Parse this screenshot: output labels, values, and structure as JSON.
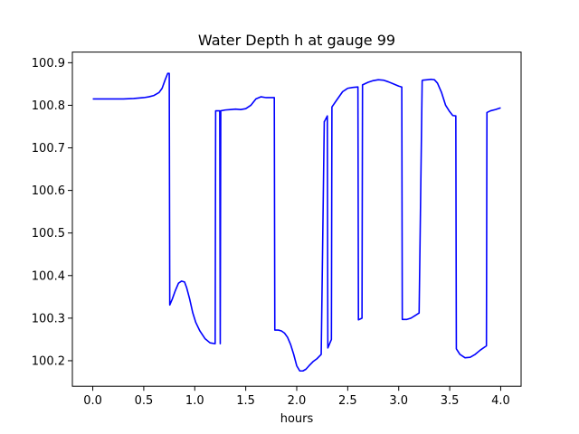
{
  "chart_data": {
    "type": "line",
    "title": "Water Depth h at gauge 99",
    "xlabel": "hours",
    "ylabel": "",
    "xlim": [
      -0.2,
      4.2
    ],
    "ylim": [
      100.14,
      100.925
    ],
    "xticks": [
      0.0,
      0.5,
      1.0,
      1.5,
      2.0,
      2.5,
      3.0,
      3.5,
      4.0
    ],
    "xtick_labels": [
      "0.0",
      "0.5",
      "1.0",
      "1.5",
      "2.0",
      "2.5",
      "3.0",
      "3.5",
      "4.0"
    ],
    "yticks": [
      100.2,
      100.3,
      100.4,
      100.5,
      100.6,
      100.7,
      100.8,
      100.9
    ],
    "ytick_labels": [
      "100.2",
      "100.3",
      "100.4",
      "100.5",
      "100.6",
      "100.7",
      "100.8",
      "100.9"
    ],
    "grid": false,
    "line_color": "#0000ff",
    "series": [
      {
        "name": "",
        "x": [
          0.0,
          0.1,
          0.2,
          0.3,
          0.4,
          0.5,
          0.55,
          0.6,
          0.65,
          0.68,
          0.71,
          0.735,
          0.75,
          0.755,
          0.78,
          0.81,
          0.84,
          0.87,
          0.9,
          0.92,
          0.95,
          0.98,
          1.01,
          1.05,
          1.1,
          1.15,
          1.2,
          1.205,
          1.245,
          1.25,
          1.255,
          1.3,
          1.35,
          1.4,
          1.45,
          1.5,
          1.55,
          1.6,
          1.65,
          1.7,
          1.75,
          1.78,
          1.785,
          1.82,
          1.85,
          1.88,
          1.91,
          1.94,
          1.97,
          2.0,
          2.03,
          2.06,
          2.09,
          2.12,
          2.16,
          2.2,
          2.24,
          2.27,
          2.272,
          2.3,
          2.305,
          2.34,
          2.345,
          2.4,
          2.45,
          2.5,
          2.55,
          2.6,
          2.605,
          2.64,
          2.645,
          2.7,
          2.75,
          2.8,
          2.85,
          2.9,
          2.95,
          3.0,
          3.03,
          3.035,
          3.08,
          3.12,
          3.16,
          3.2,
          3.23,
          3.235,
          3.28,
          3.32,
          3.35,
          3.38,
          3.42,
          3.46,
          3.5,
          3.53,
          3.56,
          3.565,
          3.6,
          3.65,
          3.7,
          3.75,
          3.8,
          3.86,
          3.865,
          3.9,
          3.95,
          4.0
        ],
        "y": [
          100.815,
          100.815,
          100.815,
          100.815,
          100.816,
          100.818,
          100.82,
          100.823,
          100.83,
          100.84,
          100.86,
          100.875,
          100.875,
          100.331,
          100.345,
          100.365,
          100.382,
          100.387,
          100.385,
          100.372,
          100.345,
          100.313,
          100.29,
          100.27,
          100.252,
          100.242,
          100.24,
          100.787,
          100.787,
          100.24,
          100.787,
          100.789,
          100.79,
          100.791,
          100.79,
          100.792,
          100.8,
          100.815,
          100.82,
          100.818,
          100.818,
          100.818,
          100.272,
          100.272,
          100.27,
          100.265,
          100.255,
          100.238,
          100.215,
          100.188,
          100.176,
          100.176,
          100.18,
          100.188,
          100.198,
          100.205,
          100.215,
          100.762,
          100.762,
          100.775,
          100.23,
          100.25,
          100.796,
          100.815,
          100.832,
          100.84,
          100.842,
          100.843,
          100.296,
          100.3,
          100.848,
          100.854,
          100.858,
          100.86,
          100.859,
          100.855,
          100.85,
          100.845,
          100.843,
          100.297,
          100.297,
          100.3,
          100.306,
          100.312,
          100.858,
          100.859,
          100.86,
          100.861,
          100.86,
          100.852,
          100.83,
          100.8,
          100.785,
          100.776,
          100.775,
          100.228,
          100.215,
          100.207,
          100.208,
          100.215,
          100.225,
          100.235,
          100.783,
          100.787,
          100.79,
          100.794
        ]
      }
    ]
  }
}
